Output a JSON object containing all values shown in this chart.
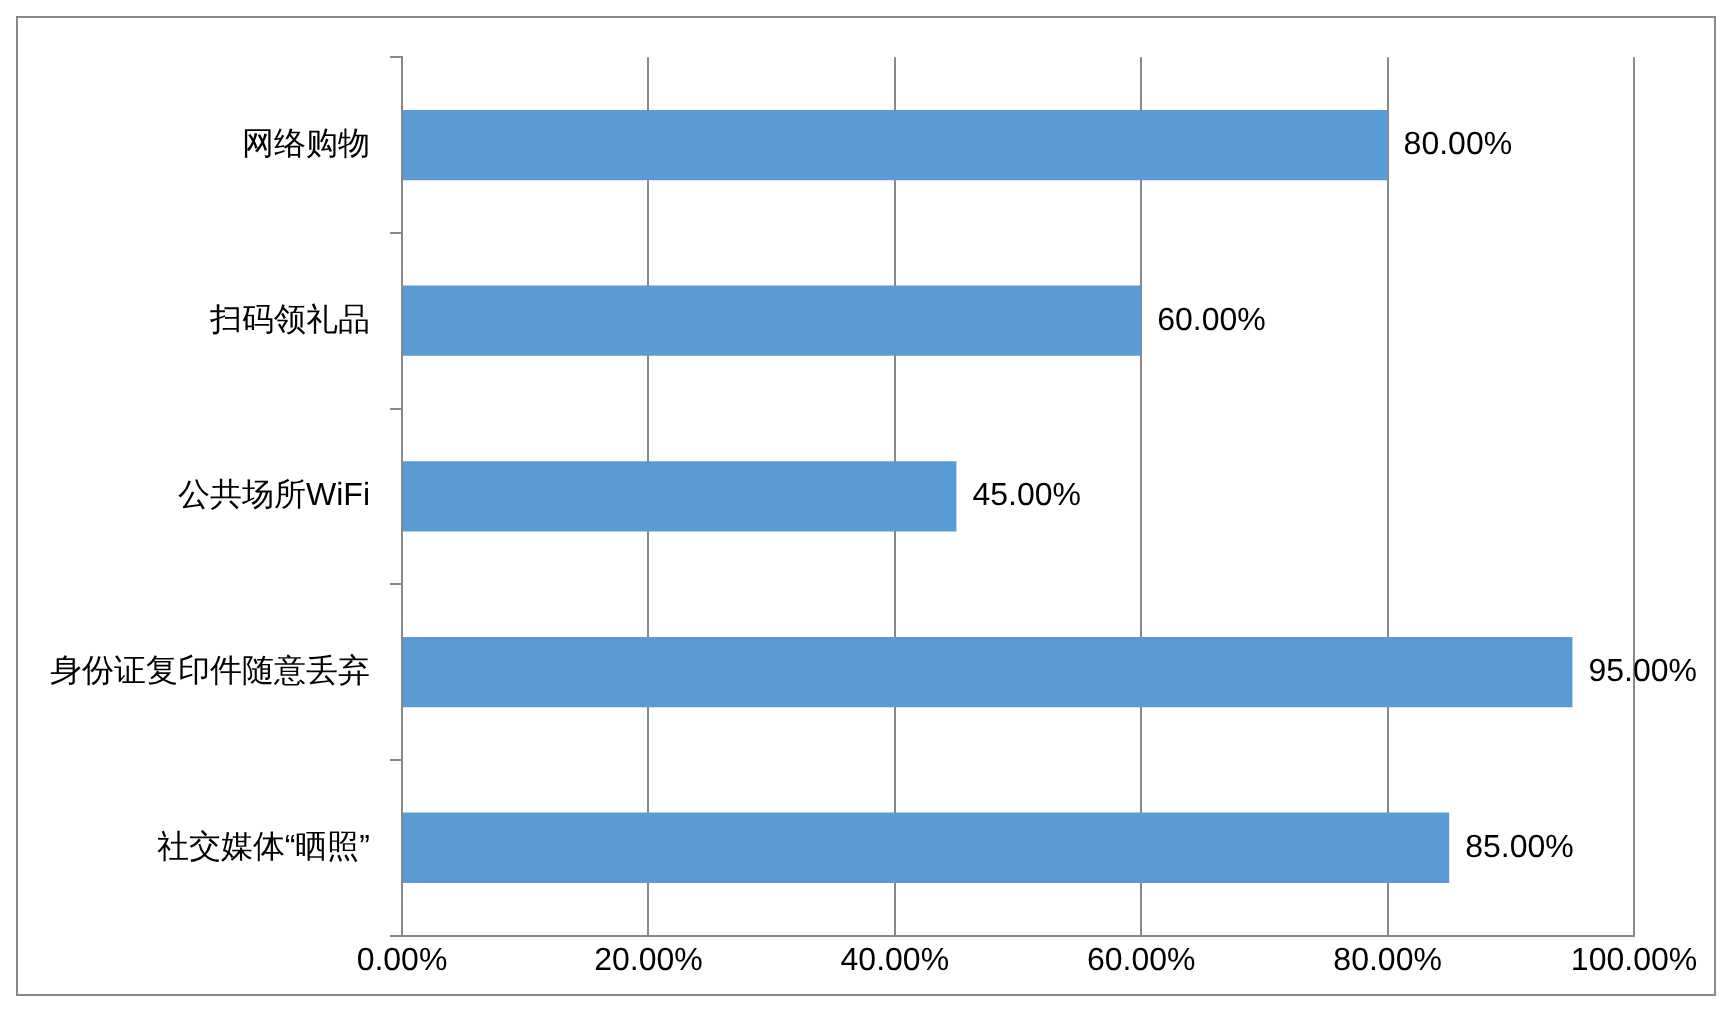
{
  "chart_data": {
    "type": "bar",
    "orientation": "horizontal",
    "categories": [
      "网络购物",
      "扫码领礼品",
      "公共场所WiFi",
      "身份证复印件随意丢弃",
      "社交媒体“晒照”"
    ],
    "values": [
      80,
      60,
      45,
      95,
      85
    ],
    "value_labels": [
      "80.00%",
      "60.00%",
      "45.00%",
      "95.00%",
      "85.00%"
    ],
    "color": "#5b9bd5",
    "xlim": [
      0,
      100
    ],
    "xticks": [
      {
        "value": 0,
        "label": "0.00%"
      },
      {
        "value": 20,
        "label": "20.00%"
      },
      {
        "value": 40,
        "label": "40.00%"
      },
      {
        "value": 60,
        "label": "60.00%"
      },
      {
        "value": 80,
        "label": "80.00%"
      },
      {
        "value": 100,
        "label": "100.00%"
      }
    ],
    "grid": "x"
  }
}
